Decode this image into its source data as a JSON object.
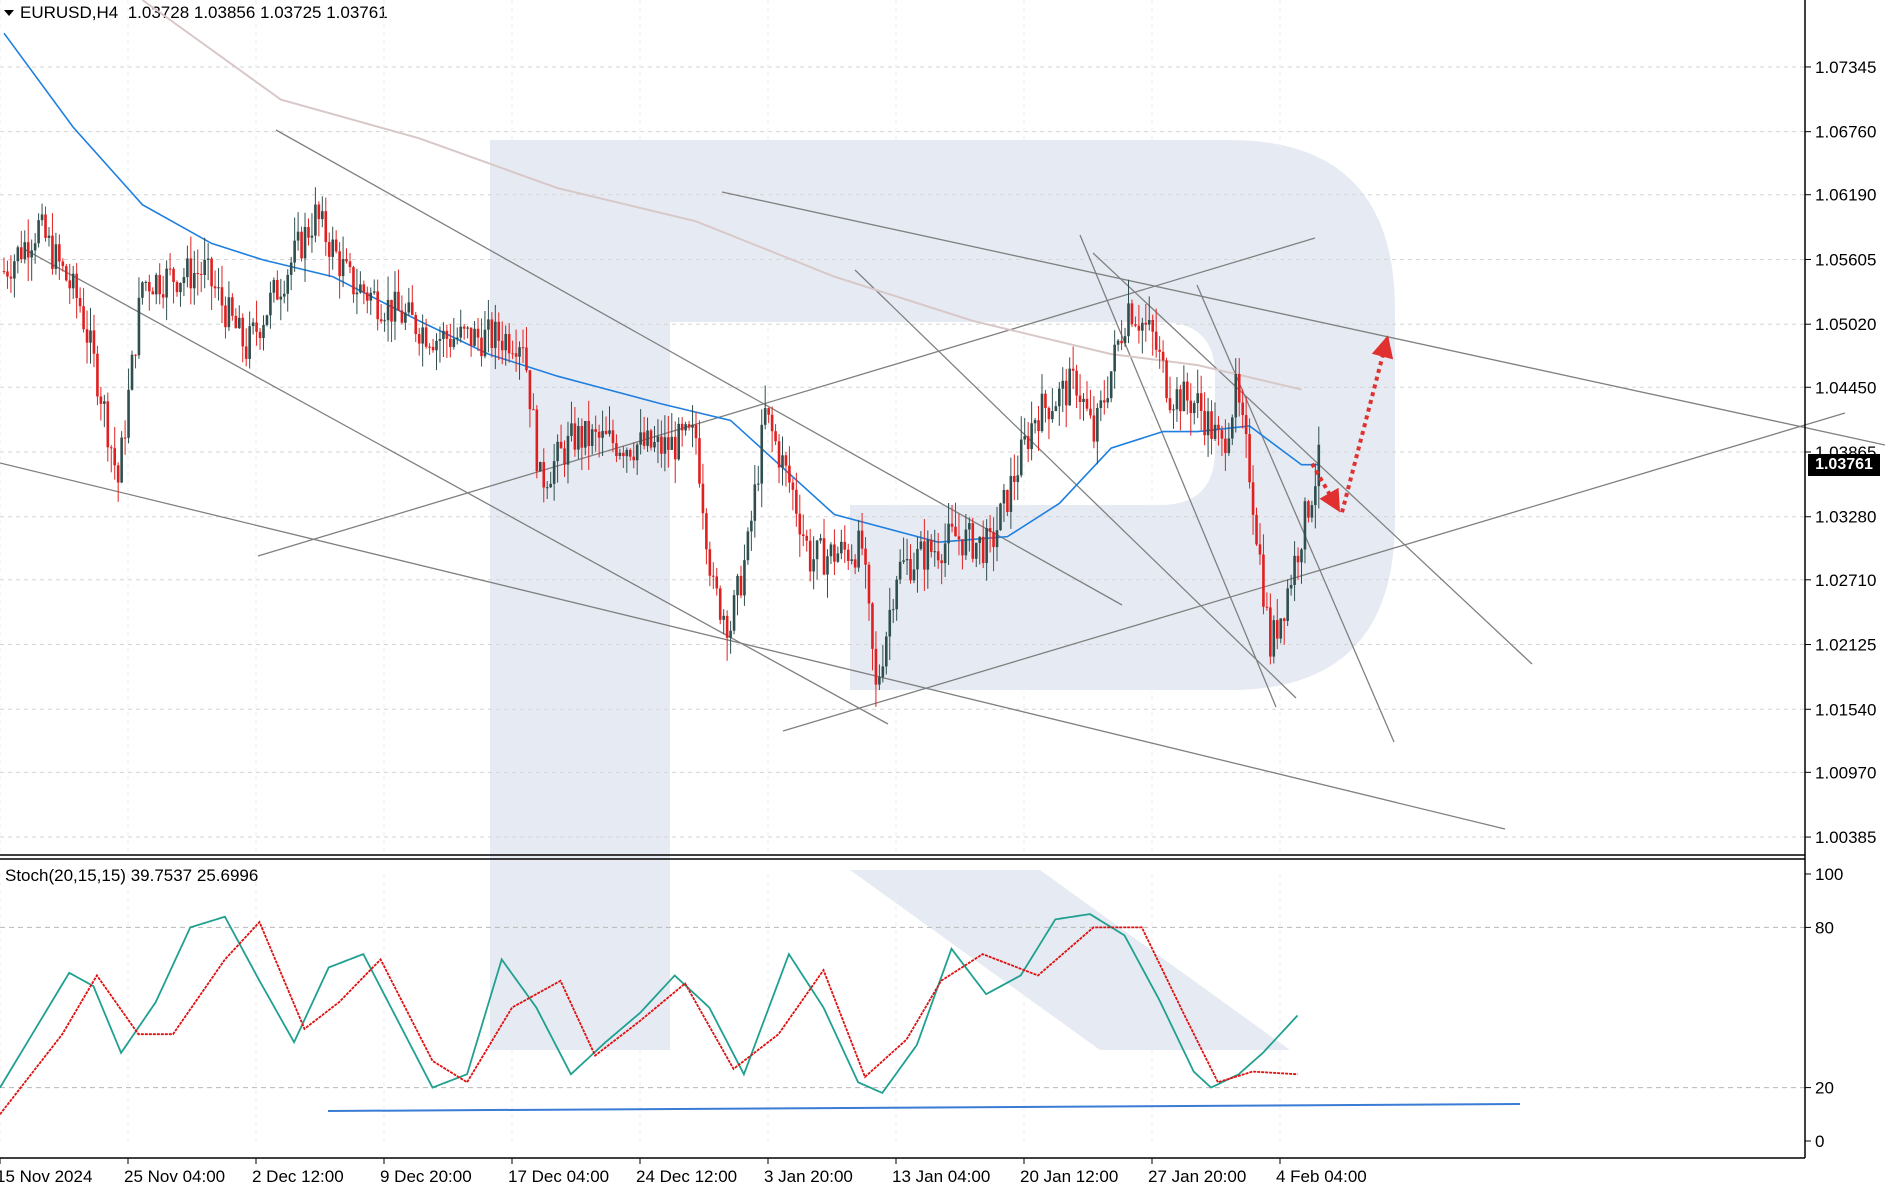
{
  "header": {
    "symbol": "EURUSD,H4",
    "ohlc": "1.03728 1.03856 1.03725 1.03761",
    "menu_icon": "triangle-down-icon"
  },
  "stochastic": {
    "label": "Stoch(20,15,15) 39.7537 25.6996",
    "levels": [
      100,
      80,
      20,
      0
    ],
    "main_color": "#20a090",
    "signal_color": "#e01010",
    "level_line_color": "#3a7bd5"
  },
  "current_price": "1.03761",
  "colors": {
    "bull": "#2f4f4f",
    "bear": "#e02020",
    "ma_fast": "#1e7fe0",
    "ma_slow": "#d8c8c8",
    "trendline": "#808080",
    "forecast_arrow": "#e03030",
    "watermark": "#e6ebf3"
  },
  "chart_data": [
    {
      "type": "candlestick",
      "title": "EURUSD,H4",
      "ylim": [
        1.0025,
        1.0795
      ],
      "y_ticks": [
        "1.07345",
        "1.06760",
        "1.06190",
        "1.05605",
        "1.05020",
        "1.04450",
        "1.03865",
        "1.03280",
        "1.02710",
        "1.02125",
        "1.01540",
        "1.00970",
        "1.00385"
      ],
      "x_ticks": [
        "15 Nov 2024",
        "25 Nov 04:00",
        "2 Dec 12:00",
        "9 Dec 20:00",
        "17 Dec 04:00",
        "24 Dec 12:00",
        "3 Jan 20:00",
        "13 Jan 04:00",
        "20 Jan 12:00",
        "27 Jan 20:00",
        "4 Feb 04:00"
      ],
      "price_path_keypoints": [
        [
          0,
          1.055
        ],
        [
          10,
          1.059
        ],
        [
          22,
          1.052
        ],
        [
          28,
          1.044
        ],
        [
          33,
          1.036
        ],
        [
          40,
          1.054
        ],
        [
          58,
          1.055
        ],
        [
          70,
          1.048
        ],
        [
          90,
          1.06
        ],
        [
          100,
          1.054
        ],
        [
          115,
          1.051
        ],
        [
          125,
          1.049
        ],
        [
          140,
          1.049
        ],
        [
          150,
          1.049
        ],
        [
          155,
          1.036
        ],
        [
          165,
          1.04
        ],
        [
          190,
          1.039
        ],
        [
          200,
          1.04
        ],
        [
          205,
          1.026
        ],
        [
          210,
          1.023
        ],
        [
          215,
          1.03
        ],
        [
          220,
          1.042
        ],
        [
          228,
          1.035
        ],
        [
          233,
          1.029
        ],
        [
          248,
          1.03
        ],
        [
          252,
          1.017
        ],
        [
          258,
          1.028
        ],
        [
          275,
          1.031
        ],
        [
          285,
          1.03
        ],
        [
          298,
          1.042
        ],
        [
          310,
          1.045
        ],
        [
          315,
          1.04
        ],
        [
          325,
          1.052
        ],
        [
          332,
          1.049
        ],
        [
          337,
          1.044
        ],
        [
          345,
          1.043
        ],
        [
          352,
          1.039
        ],
        [
          356,
          1.044
        ],
        [
          360,
          1.037
        ],
        [
          366,
          1.021
        ],
        [
          370,
          1.025
        ],
        [
          380,
          1.0376
        ]
      ],
      "ma_fast": [
        [
          0,
          1.0765
        ],
        [
          20,
          1.068
        ],
        [
          40,
          1.061
        ],
        [
          60,
          1.0575
        ],
        [
          75,
          1.056
        ],
        [
          95,
          1.0545
        ],
        [
          120,
          1.0505
        ],
        [
          140,
          1.0475
        ],
        [
          160,
          1.0455
        ],
        [
          190,
          1.043
        ],
        [
          210,
          1.0415
        ],
        [
          240,
          1.033
        ],
        [
          270,
          1.0305
        ],
        [
          290,
          1.031
        ],
        [
          305,
          1.034
        ],
        [
          320,
          1.039
        ],
        [
          335,
          1.0405
        ],
        [
          345,
          1.0405
        ],
        [
          360,
          1.041
        ],
        [
          375,
          1.0375
        ],
        [
          380,
          1.0375
        ]
      ],
      "ma_slow": [
        [
          40,
          1.0795
        ],
        [
          80,
          1.0705
        ],
        [
          120,
          1.067
        ],
        [
          160,
          1.0625
        ],
        [
          200,
          1.0595
        ],
        [
          240,
          1.0545
        ],
        [
          280,
          1.0505
        ],
        [
          320,
          1.0475
        ],
        [
          345,
          1.0465
        ],
        [
          375,
          1.0443
        ]
      ],
      "forecast": [
        [
          1.0376,
          1.0332
        ],
        [
          1.0332,
          1.0492
        ]
      ]
    },
    {
      "type": "line",
      "title": "Stoch(20,15,15) 39.7537 25.6996",
      "ylim": [
        0,
        100
      ],
      "y_ticks": [
        "100",
        "80",
        "20",
        "0"
      ],
      "series": [
        {
          "values_keypoints": [
            [
              0,
              20
            ],
            [
              20,
              63
            ],
            [
              27,
              58
            ],
            [
              35,
              33
            ],
            [
              45,
              52
            ],
            [
              55,
              80
            ],
            [
              65,
              84
            ],
            [
              75,
              60
            ],
            [
              85,
              37
            ],
            [
              95,
              65
            ],
            [
              105,
              70
            ],
            [
              115,
              45
            ],
            [
              125,
              20
            ],
            [
              135,
              25
            ],
            [
              145,
              68
            ],
            [
              155,
              50
            ],
            [
              165,
              25
            ],
            [
              175,
              37
            ],
            [
              185,
              48
            ],
            [
              195,
              62
            ],
            [
              205,
              50
            ],
            [
              215,
              25
            ],
            [
              228,
              70
            ],
            [
              238,
              50
            ],
            [
              248,
              22
            ],
            [
              255,
              18
            ],
            [
              265,
              36
            ],
            [
              275,
              72
            ],
            [
              285,
              55
            ],
            [
              295,
              62
            ],
            [
              305,
              83
            ],
            [
              315,
              85
            ],
            [
              325,
              77
            ],
            [
              335,
              53
            ],
            [
              345,
              26
            ],
            [
              350,
              20
            ],
            [
              358,
              25
            ],
            [
              365,
              33
            ],
            [
              375,
              47
            ]
          ]
        },
        {
          "values_keypoints": [
            [
              0,
              10
            ],
            [
              18,
              40
            ],
            [
              28,
              62
            ],
            [
              40,
              40
            ],
            [
              50,
              40
            ],
            [
              65,
              68
            ],
            [
              75,
              82
            ],
            [
              88,
              42
            ],
            [
              98,
              52
            ],
            [
              110,
              68
            ],
            [
              125,
              30
            ],
            [
              135,
              22
            ],
            [
              148,
              50
            ],
            [
              162,
              60
            ],
            [
              172,
              32
            ],
            [
              185,
              45
            ],
            [
              198,
              59
            ],
            [
              212,
              27
            ],
            [
              225,
              40
            ],
            [
              238,
              64
            ],
            [
              250,
              24
            ],
            [
              262,
              38
            ],
            [
              272,
              60
            ],
            [
              284,
              70
            ],
            [
              300,
              62
            ],
            [
              316,
              80
            ],
            [
              330,
              80
            ],
            [
              342,
              48
            ],
            [
              352,
              22
            ],
            [
              362,
              26
            ],
            [
              375,
              25
            ]
          ]
        }
      ]
    }
  ]
}
